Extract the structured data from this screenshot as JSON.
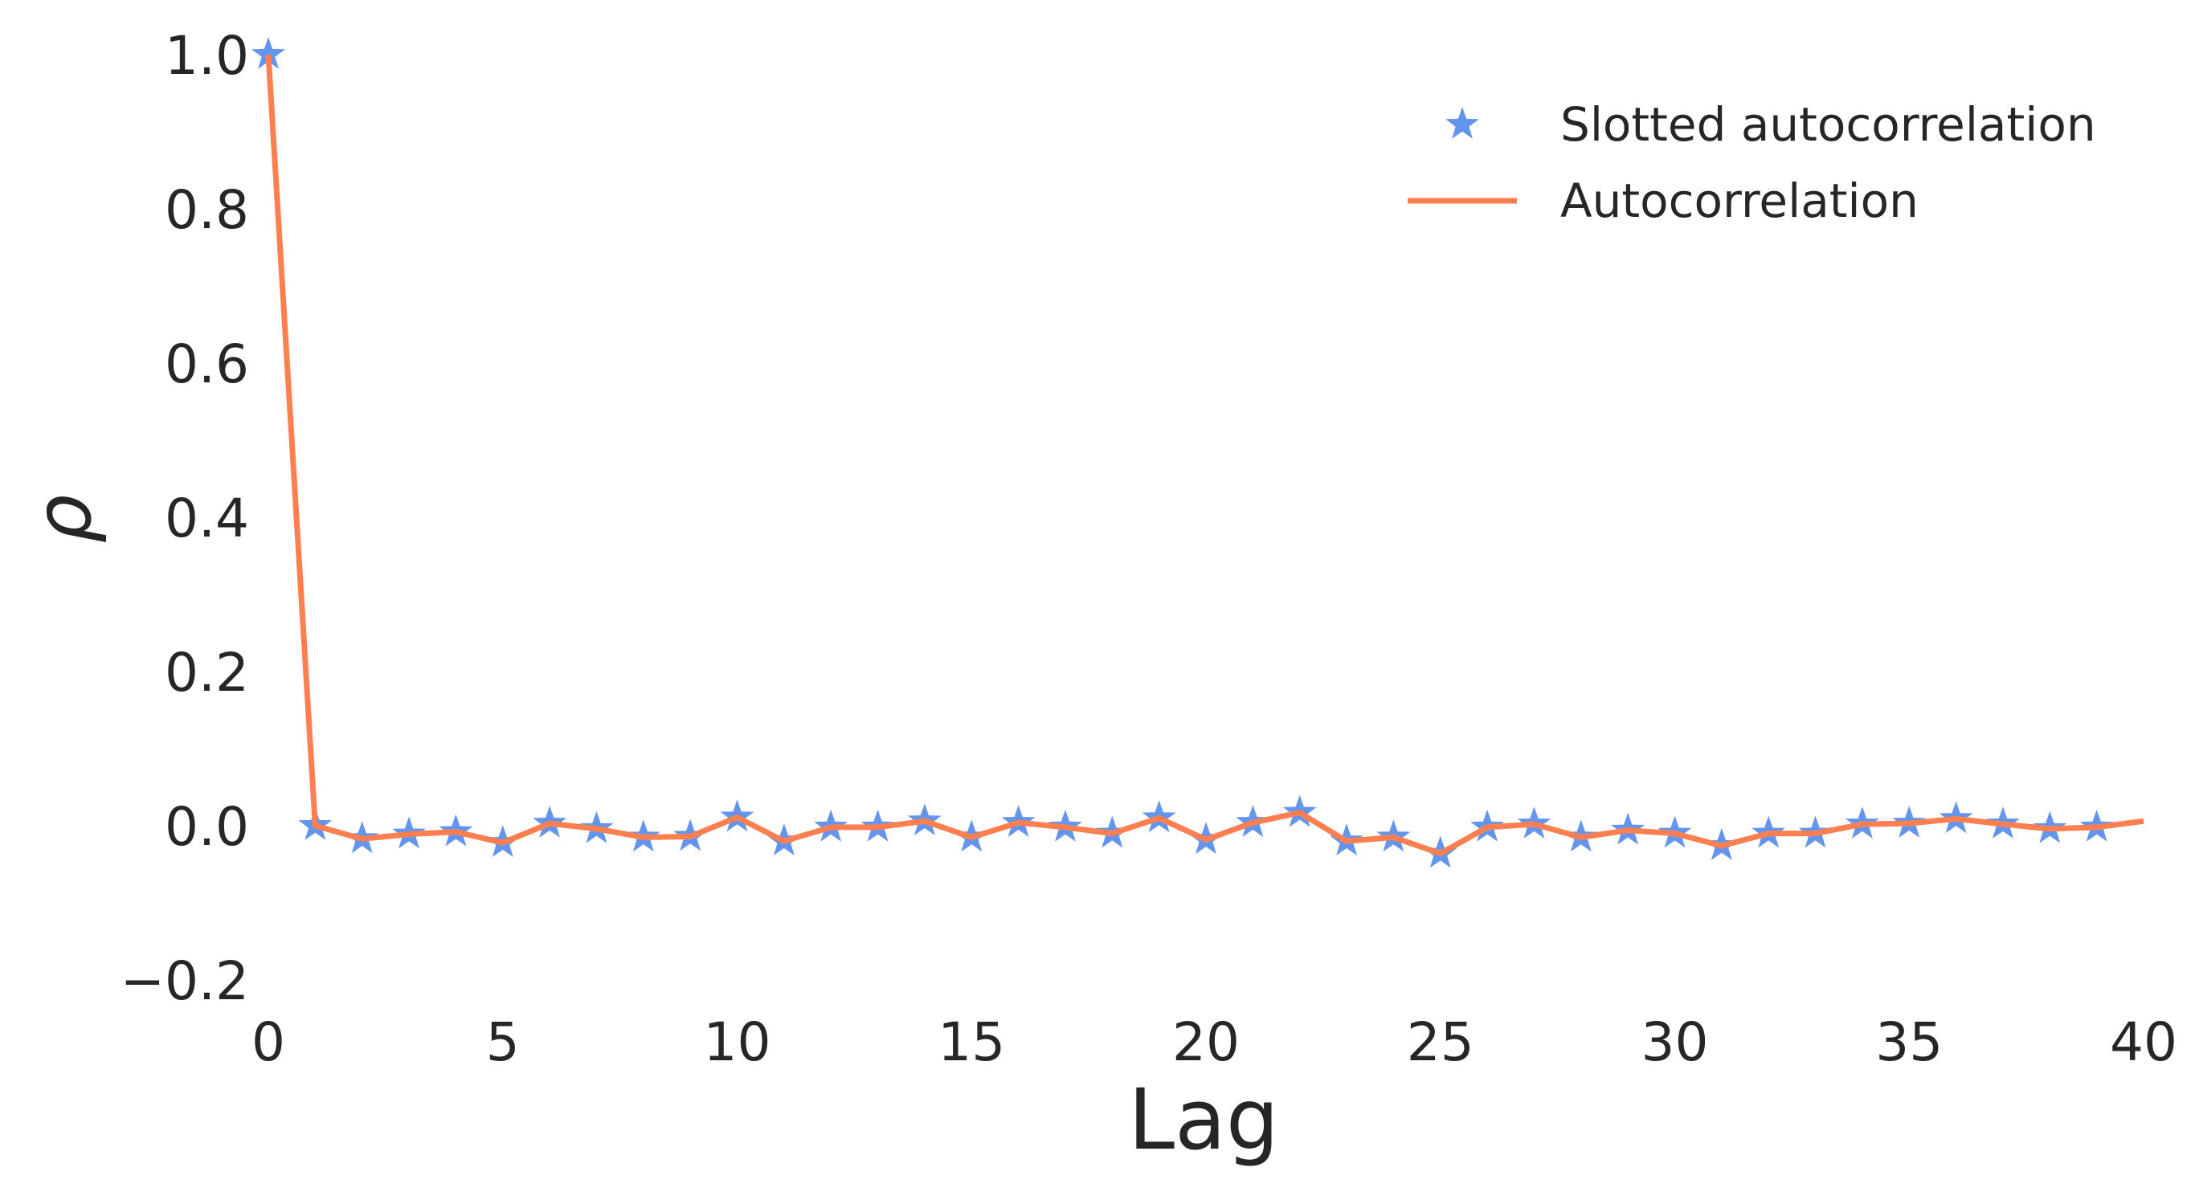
{
  "chart_data": {
    "type": "line",
    "xlabel": "Lag",
    "ylabel": "ρ",
    "xlim": [
      0,
      40
    ],
    "ylim": [
      -0.2,
      1.0
    ],
    "xticks": [
      0,
      5,
      10,
      15,
      20,
      25,
      30,
      35,
      40
    ],
    "xtick_labels": [
      "0",
      "5",
      "10",
      "15",
      "20",
      "25",
      "30",
      "35",
      "40"
    ],
    "yticks": [
      -0.2,
      0.0,
      0.2,
      0.4,
      0.6,
      0.8,
      1.0
    ],
    "ytick_labels": [
      "−0.2",
      "0.0",
      "0.2",
      "0.4",
      "0.6",
      "0.8",
      "1.0"
    ],
    "grid": false,
    "legend": {
      "position": "top-right",
      "entries": [
        {
          "label": "Slotted autocorrelation",
          "marker": "star",
          "color": "#6495ED"
        },
        {
          "label": "Autocorrelation",
          "marker": "line",
          "color": "#FF7F50"
        }
      ]
    },
    "series": [
      {
        "name": "Slotted autocorrelation",
        "style": "markers",
        "marker": "star",
        "color": "#6495ED",
        "x": [
          0,
          1,
          2,
          3,
          4,
          5,
          6,
          7,
          8,
          9,
          10,
          11,
          12,
          13,
          14,
          15,
          16,
          17,
          18,
          19,
          20,
          21,
          22,
          23,
          24,
          25,
          26,
          27,
          28,
          29,
          30,
          31,
          32,
          33,
          34,
          35,
          36,
          37,
          38,
          39
        ],
        "y": [
          1.0,
          0.0,
          -0.017,
          -0.011,
          -0.008,
          -0.022,
          0.003,
          -0.004,
          -0.015,
          -0.014,
          0.011,
          -0.02,
          -0.002,
          -0.002,
          0.006,
          -0.015,
          0.004,
          -0.002,
          -0.01,
          0.01,
          -0.018,
          0.004,
          0.017,
          -0.02,
          -0.015,
          -0.036,
          -0.002,
          0.002,
          -0.015,
          -0.006,
          -0.01,
          -0.026,
          -0.01,
          -0.01,
          0.002,
          0.003,
          0.009,
          0.002,
          -0.004,
          -0.002
        ]
      },
      {
        "name": "Autocorrelation",
        "style": "line",
        "color": "#FF7F50",
        "x": [
          0,
          1,
          2,
          3,
          4,
          5,
          6,
          7,
          8,
          9,
          10,
          11,
          12,
          13,
          14,
          15,
          16,
          17,
          18,
          19,
          20,
          21,
          22,
          23,
          24,
          25,
          26,
          27,
          28,
          29,
          30,
          31,
          32,
          33,
          34,
          35,
          36,
          37,
          38,
          39,
          40
        ],
        "y": [
          1.0,
          0.0,
          -0.017,
          -0.011,
          -0.008,
          -0.022,
          0.003,
          -0.004,
          -0.015,
          -0.014,
          0.011,
          -0.02,
          -0.002,
          -0.002,
          0.006,
          -0.015,
          0.004,
          -0.002,
          -0.01,
          0.01,
          -0.018,
          0.004,
          0.017,
          -0.02,
          -0.015,
          -0.036,
          -0.002,
          0.002,
          -0.015,
          -0.006,
          -0.01,
          -0.026,
          -0.01,
          -0.01,
          0.002,
          0.003,
          0.009,
          0.002,
          -0.004,
          -0.002,
          0.006
        ]
      }
    ]
  }
}
